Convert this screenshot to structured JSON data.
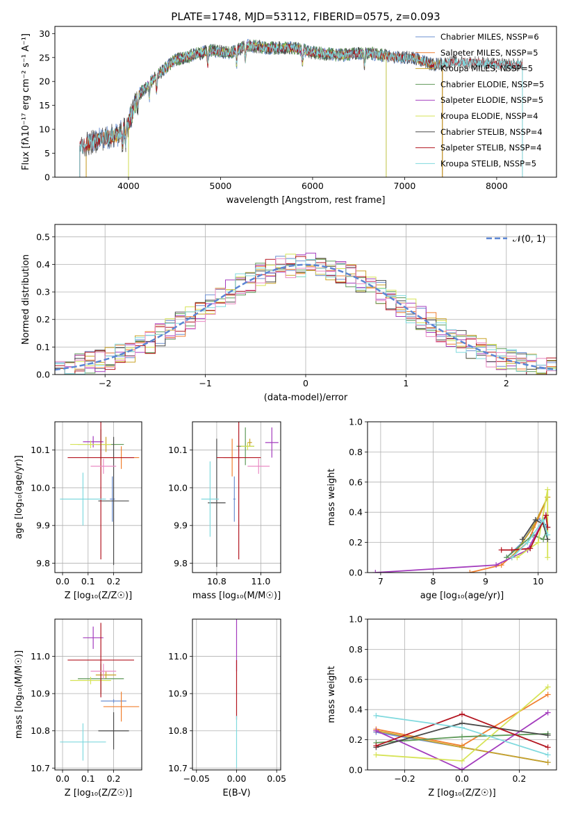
{
  "figure_title": "PLATE=1748, MJD=53112, FIBERID=0575, z=0.093",
  "colors": {
    "Chabrier MILES": "#6b8fd1",
    "Salpeter MILES": "#f07f2e",
    "Kroupa MILES": "#c9a227",
    "Chabrier ELODIE": "#5f9a5a",
    "Salpeter ELODIE": "#a33bbd",
    "Kroupa ELODIE": "#d6e356",
    "Chabrier STELIB": "#4a4a4a",
    "Salpeter STELIB": "#b3141f",
    "Kroupa STELIB": "#7fd9de",
    "Extra": "#e98ac4"
  },
  "chart_data": [
    {
      "id": "spectrum",
      "type": "line",
      "xlabel": "wavelength [Angstrom, rest frame]",
      "ylabel": "Flux [fλ10⁻¹⁷ erg cm⁻² s⁻¹ A⁻¹]",
      "xlim": [
        3200,
        8650
      ],
      "ylim": [
        0,
        31.5
      ],
      "xticks": [
        "4000",
        "5000",
        "6000",
        "7000",
        "8000"
      ],
      "yticks": [
        "0",
        "5",
        "10",
        "15",
        "20",
        "25",
        "30"
      ],
      "grid": false,
      "legend_position": "top-right",
      "legend": [
        "Chabrier MILES, NSSP=6",
        "Salpeter MILES, NSSP=5",
        "Kroupa MILES, NSSP=5",
        "Chabrier ELODIE, NSSP=5",
        "Salpeter ELODIE, NSSP=5",
        "Kroupa ELODIE, NSSP=4",
        "Chabrier STELIB, NSSP=4",
        "Salpeter STELIB, NSSP=4",
        "Kroupa STELIB, NSSP=5"
      ],
      "continuum": {
        "x": [
          3500,
          3700,
          3900,
          4000,
          4100,
          4300,
          4500,
          4700,
          4900,
          5100,
          5300,
          5500,
          5800,
          6000,
          6300,
          6600,
          6900,
          7100,
          7300,
          7500,
          7800,
          8000,
          8200
        ],
        "y": [
          6.5,
          8,
          9,
          11,
          17,
          21,
          24.5,
          25.5,
          26.5,
          26,
          27.5,
          27,
          27,
          26,
          25.5,
          26,
          25,
          25,
          23.5,
          24,
          24,
          23.5,
          23.5
        ]
      },
      "absorption_lines_x": [
        3934,
        3969,
        4102,
        4227,
        4305,
        4861,
        5175,
        5270,
        5890,
        6563
      ],
      "series": [
        {
          "name": "Chabrier MILES",
          "x": [
            3540,
            7410
          ]
        },
        {
          "name": "Salpeter MILES",
          "x": [
            3540,
            7410
          ]
        },
        {
          "name": "Kroupa MILES",
          "x": [
            3540,
            7410
          ]
        },
        {
          "name": "Chabrier ELODIE",
          "x": [
            4000,
            6800
          ]
        },
        {
          "name": "Salpeter ELODIE",
          "x": [
            4000,
            6800
          ]
        },
        {
          "name": "Kroupa ELODIE",
          "x": [
            4000,
            6800
          ]
        },
        {
          "name": "Chabrier STELIB",
          "x": [
            3470,
            8280
          ]
        },
        {
          "name": "Salpeter STELIB",
          "x": [
            3470,
            8280
          ]
        },
        {
          "name": "Kroupa STELIB",
          "x": [
            3470,
            8280
          ]
        }
      ]
    },
    {
      "id": "residuals",
      "type": "histogram",
      "xlabel": "(data-model)/error",
      "ylabel": "Normed distribution",
      "xlim": [
        -2.5,
        2.5
      ],
      "ylim": [
        0,
        0.545
      ],
      "xticks": [
        "−2",
        "−1",
        "0",
        "1",
        "2"
      ],
      "yticks": [
        "0.0",
        "0.1",
        "0.2",
        "0.3",
        "0.4",
        "0.5"
      ],
      "grid": true,
      "legend_position": "top-right",
      "legend": [
        "𝒩(0, 1)"
      ],
      "bin_width": 0.1,
      "n_hists": 10
    },
    {
      "id": "age_vs_Z",
      "type": "scatter",
      "xlabel": "Z [log₁₀(Z/Z☉)]",
      "ylabel": "age  [log₁₀(age/yr)]",
      "xlim": [
        -0.03,
        0.31
      ],
      "ylim": [
        9.775,
        10.175
      ],
      "xticks": [
        "0.0",
        "0.1",
        "0.2"
      ],
      "yticks": [
        "9.8",
        "9.9",
        "10.0",
        "10.1"
      ],
      "grid": true,
      "points": [
        {
          "s": "Chabrier MILES",
          "x": 0.195,
          "y": 9.97,
          "xe": 0.01,
          "ye": 0.06
        },
        {
          "s": "Salpeter MILES",
          "x": 0.23,
          "y": 10.08,
          "xe": 0.07,
          "ye": 0.03
        },
        {
          "s": "Kroupa MILES",
          "x": 0.17,
          "y": 10.115,
          "xe": 0.04,
          "ye": 0.02
        },
        {
          "s": "Chabrier ELODIE",
          "x": 0.15,
          "y": 10.115,
          "xe": 0.09,
          "ye": 0.04
        },
        {
          "s": "Salpeter ELODIE",
          "x": 0.12,
          "y": 10.122,
          "xe": 0.04,
          "ye": 0.015
        },
        {
          "s": "Kroupa ELODIE",
          "x": 0.11,
          "y": 10.115,
          "xe": 0.08,
          "ye": 0.01
        },
        {
          "s": "Chabrier STELIB",
          "x": 0.2,
          "y": 9.965,
          "xe": 0.06,
          "ye": 0.17
        },
        {
          "s": "Salpeter STELIB",
          "x": 0.15,
          "y": 10.08,
          "xe": 0.13,
          "ye": 0.27
        },
        {
          "s": "Kroupa STELIB",
          "x": 0.08,
          "y": 9.97,
          "xe": 0.09,
          "ye": 0.07
        },
        {
          "s": "Extra",
          "x": 0.16,
          "y": 10.057,
          "xe": 0.05,
          "ye": 0.02
        }
      ]
    },
    {
      "id": "age_vs_mass",
      "type": "scatter",
      "xlabel": "mass [log₁₀(M/M☉)]",
      "ylabel": "",
      "xlim": [
        10.69,
        11.09
      ],
      "ylim": [
        9.775,
        10.175
      ],
      "xticks": [
        "10.8",
        "11.0"
      ],
      "yticks": [
        "9.8",
        "9.9",
        "10.0",
        "10.1"
      ],
      "grid": true,
      "points": [
        {
          "s": "Chabrier MILES",
          "x": 10.88,
          "y": 9.97,
          "xe": 0.005,
          "ye": 0.06
        },
        {
          "s": "Salpeter MILES",
          "x": 10.87,
          "y": 10.08,
          "xe": 0.04,
          "ye": 0.05
        },
        {
          "s": "Kroupa MILES",
          "x": 10.95,
          "y": 10.12,
          "xe": 0.01,
          "ye": 0.01
        },
        {
          "s": "Chabrier ELODIE",
          "x": 10.93,
          "y": 10.11,
          "xe": 0.04,
          "ye": 0.05
        },
        {
          "s": "Salpeter ELODIE",
          "x": 11.05,
          "y": 10.12,
          "xe": 0.03,
          "ye": 0.04
        },
        {
          "s": "Kroupa ELODIE",
          "x": 10.94,
          "y": 10.11,
          "xe": 0.03,
          "ye": 0.01
        },
        {
          "s": "Chabrier STELIB",
          "x": 10.8,
          "y": 9.96,
          "xe": 0.04,
          "ye": 0.17
        },
        {
          "s": "Salpeter STELIB",
          "x": 10.9,
          "y": 10.08,
          "xe": 0.1,
          "ye": 0.27
        },
        {
          "s": "Kroupa STELIB",
          "x": 10.77,
          "y": 9.97,
          "xe": 0.04,
          "ye": 0.1
        },
        {
          "s": "Extra",
          "x": 10.99,
          "y": 10.057,
          "xe": 0.05,
          "ye": 0.02
        }
      ]
    },
    {
      "id": "weight_vs_age",
      "type": "line",
      "xlabel": "age  [log₁₀(age/yr)]",
      "ylabel": "mass weight",
      "xlim": [
        6.75,
        10.35
      ],
      "ylim": [
        0,
        1.0
      ],
      "xticks": [
        "7",
        "8",
        "9",
        "10"
      ],
      "yticks": [
        "0.0",
        "0.2",
        "0.4",
        "0.6",
        "0.8",
        "1.0"
      ],
      "grid": true,
      "series": [
        {
          "name": "Chabrier MILES",
          "x": [
            9.4,
            9.7,
            10.0,
            10.18
          ],
          "y": [
            0.1,
            0.2,
            0.36,
            0.3
          ]
        },
        {
          "name": "Salpeter MILES",
          "x": [
            8.7,
            9.3,
            9.8,
            10.18
          ],
          "y": [
            0.0,
            0.05,
            0.2,
            0.5
          ]
        },
        {
          "name": "Kroupa MILES",
          "x": [
            9.5,
            9.9,
            10.18
          ],
          "y": [
            0.1,
            0.3,
            0.5
          ]
        },
        {
          "name": "Chabrier ELODIE",
          "x": [
            9.4,
            9.9,
            10.1,
            10.18
          ],
          "y": [
            0.1,
            0.25,
            0.22,
            0.3
          ]
        },
        {
          "name": "Salpeter ELODIE",
          "x": [
            6.9,
            9.2,
            9.8,
            10.15,
            10.18
          ],
          "y": [
            0.0,
            0.05,
            0.15,
            0.38,
            0.3
          ]
        },
        {
          "name": "Kroupa ELODIE",
          "x": [
            9.6,
            10.0,
            10.18,
            10.18
          ],
          "y": [
            0.1,
            0.2,
            0.55,
            0.1
          ]
        },
        {
          "name": "Chabrier STELIB",
          "x": [
            9.7,
            9.95,
            10.1,
            10.18
          ],
          "y": [
            0.22,
            0.35,
            0.32,
            0.22
          ]
        },
        {
          "name": "Salpeter STELIB",
          "x": [
            9.3,
            9.5,
            9.85,
            10.15,
            10.18
          ],
          "y": [
            0.15,
            0.15,
            0.16,
            0.38,
            0.3
          ]
        },
        {
          "name": "Kroupa STELIB",
          "x": [
            9.5,
            9.8,
            10.1,
            10.18
          ],
          "y": [
            0.1,
            0.2,
            0.35,
            0.25
          ]
        }
      ]
    },
    {
      "id": "mass_vs_Z",
      "type": "scatter",
      "xlabel": "Z [log₁₀(Z/Z☉)]",
      "ylabel": "mass [log₁₀(M/M☉)]",
      "xlim": [
        -0.03,
        0.31
      ],
      "ylim": [
        10.695,
        11.1
      ],
      "xticks": [
        "0.0",
        "0.1",
        "0.2"
      ],
      "yticks": [
        "10.7",
        "10.8",
        "10.9",
        "11.0"
      ],
      "grid": true,
      "points": [
        {
          "s": "Chabrier MILES",
          "x": 0.2,
          "y": 10.88,
          "xe": 0.05,
          "ye": 0.005
        },
        {
          "s": "Salpeter MILES",
          "x": 0.23,
          "y": 10.865,
          "xe": 0.07,
          "ye": 0.04
        },
        {
          "s": "Kroupa MILES",
          "x": 0.17,
          "y": 10.95,
          "xe": 0.04,
          "ye": 0.01
        },
        {
          "s": "Chabrier ELODIE",
          "x": 0.15,
          "y": 10.94,
          "xe": 0.09,
          "ye": 0.04
        },
        {
          "s": "Salpeter ELODIE",
          "x": 0.12,
          "y": 11.05,
          "xe": 0.04,
          "ye": 0.03
        },
        {
          "s": "Kroupa ELODIE",
          "x": 0.11,
          "y": 10.935,
          "xe": 0.08,
          "ye": 0.01
        },
        {
          "s": "Chabrier STELIB",
          "x": 0.2,
          "y": 10.8,
          "xe": 0.06,
          "ye": 0.05
        },
        {
          "s": "Salpeter STELIB",
          "x": 0.15,
          "y": 10.99,
          "xe": 0.13,
          "ye": 0.1
        },
        {
          "s": "Kroupa STELIB",
          "x": 0.08,
          "y": 10.77,
          "xe": 0.09,
          "ye": 0.05
        },
        {
          "s": "Extra",
          "x": 0.16,
          "y": 10.96,
          "xe": 0.05,
          "ye": 0.02
        }
      ]
    },
    {
      "id": "mass_vs_EBV",
      "type": "scatter",
      "xlabel": "E(B-V)",
      "ylabel": "",
      "xlim": [
        -0.055,
        0.055
      ],
      "ylim": [
        10.695,
        11.1
      ],
      "xticks": [
        "−0.05",
        "0.00",
        "0.05"
      ],
      "yticks": [
        "10.7",
        "10.8",
        "10.9",
        "11.0"
      ],
      "grid": true,
      "points": [
        {
          "s": "Salpeter ELODIE",
          "x": 0.0,
          "y": 11.03,
          "xe": 0.0,
          "ye": 0.07
        },
        {
          "s": "Salpeter STELIB",
          "x": 0.0,
          "y": 10.91,
          "xe": 0.0,
          "ye": 0.08
        },
        {
          "s": "Kroupa STELIB",
          "x": 0.0,
          "y": 10.77,
          "xe": 0.0,
          "ye": 0.07
        }
      ]
    },
    {
      "id": "weight_vs_Z",
      "type": "line",
      "xlabel": "Z [log₁₀(Z/Z☉)]",
      "ylabel": "mass weight",
      "xlim": [
        -0.33,
        0.33
      ],
      "ylim": [
        0,
        1.0
      ],
      "xticks": [
        "−0.2",
        "0.0",
        "0.2"
      ],
      "yticks": [
        "0.0",
        "0.2",
        "0.4",
        "0.6",
        "0.8",
        "1.0"
      ],
      "grid": true,
      "series": [
        {
          "name": "Chabrier MILES",
          "x": [
            -0.3,
            0.0,
            0.3
          ],
          "y": [
            0.25,
            0.15,
            0.05
          ]
        },
        {
          "name": "Salpeter MILES",
          "x": [
            -0.3,
            0.0,
            0.3
          ],
          "y": [
            0.27,
            0.16,
            0.5
          ]
        },
        {
          "name": "Kroupa MILES",
          "x": [
            -0.3,
            0.0,
            0.3
          ],
          "y": [
            0.26,
            0.15,
            0.05
          ]
        },
        {
          "name": "Chabrier ELODIE",
          "x": [
            -0.3,
            0.0,
            0.3
          ],
          "y": [
            0.18,
            0.22,
            0.24
          ]
        },
        {
          "name": "Salpeter ELODIE",
          "x": [
            -0.3,
            0.0,
            0.3
          ],
          "y": [
            0.26,
            0.0,
            0.38
          ]
        },
        {
          "name": "Kroupa ELODIE",
          "x": [
            -0.3,
            0.0,
            0.3
          ],
          "y": [
            0.1,
            0.06,
            0.55
          ]
        },
        {
          "name": "Chabrier STELIB",
          "x": [
            -0.3,
            0.0,
            0.3
          ],
          "y": [
            0.15,
            0.31,
            0.23
          ]
        },
        {
          "name": "Salpeter STELIB",
          "x": [
            -0.3,
            0.0,
            0.3
          ],
          "y": [
            0.16,
            0.37,
            0.15
          ]
        },
        {
          "name": "Kroupa STELIB",
          "x": [
            -0.3,
            0.0,
            0.3
          ],
          "y": [
            0.36,
            0.28,
            0.1
          ]
        }
      ]
    }
  ]
}
